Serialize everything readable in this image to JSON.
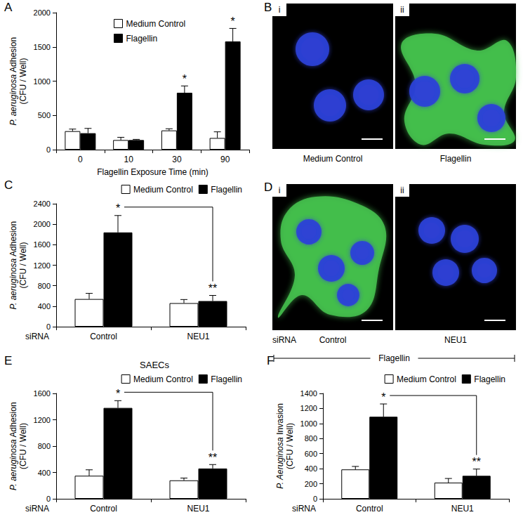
{
  "chart_data": [
    {
      "panel": "A",
      "type": "bar",
      "categories": [
        "0",
        "10",
        "30",
        "90"
      ],
      "xlabel": "Flagellin Exposure Time (min)",
      "ylabel": "P. aeruginosa Adhesion (CFU / Well)",
      "series": [
        {
          "name": "Medium Control",
          "color": "#ffffff",
          "values": [
            270,
            140,
            280,
            170
          ],
          "errors": [
            30,
            40,
            25,
            90
          ]
        },
        {
          "name": "Flagellin",
          "color": "#000000",
          "values": [
            240,
            140,
            830,
            1580
          ],
          "errors": [
            70,
            10,
            100,
            190
          ]
        }
      ],
      "ylim": [
        0,
        2000
      ],
      "yticks": [
        0,
        500,
        1000,
        1500,
        2000
      ],
      "grid": false,
      "legend": "upper center",
      "annotations": [
        {
          "text": "*",
          "series": "Flagellin",
          "category": "30"
        },
        {
          "text": "*",
          "series": "Flagellin",
          "category": "90"
        }
      ]
    },
    {
      "panel": "C",
      "type": "bar",
      "categories": [
        "Control",
        "NEU1"
      ],
      "row_label": "siRNA",
      "ylabel": "P. aeruginosa Adhesion (CFU / Well)",
      "series": [
        {
          "name": "Medium Control",
          "color": "#ffffff",
          "values": [
            540,
            460
          ],
          "errors": [
            110,
            70
          ]
        },
        {
          "name": "Flagellin",
          "color": "#000000",
          "values": [
            1840,
            500
          ],
          "errors": [
            330,
            110
          ]
        }
      ],
      "ylim": [
        0,
        2400
      ],
      "yticks": [
        0,
        400,
        800,
        1200,
        1600,
        2000,
        2400
      ],
      "grid": false,
      "legend": "upper right",
      "annotations": [
        {
          "text": "*",
          "series": "Flagellin",
          "category": "Control"
        },
        {
          "text": "**",
          "series": "Flagellin",
          "category": "NEU1"
        }
      ],
      "bracket": {
        "series": "Flagellin",
        "from": "Control",
        "to": "NEU1"
      }
    },
    {
      "panel": "E",
      "type": "bar",
      "title": "SAECs",
      "categories": [
        "Control",
        "NEU1"
      ],
      "row_label": "siRNA",
      "ylabel": "P. aeruginosa Adhesion (CFU / Well)",
      "series": [
        {
          "name": "Medium Control",
          "color": "#ffffff",
          "values": [
            350,
            280
          ],
          "errors": [
            90,
            35
          ]
        },
        {
          "name": "Flagellin",
          "color": "#000000",
          "values": [
            1380,
            460
          ],
          "errors": [
            110,
            60
          ]
        }
      ],
      "ylim": [
        0,
        1600
      ],
      "yticks": [
        0,
        400,
        800,
        1200,
        1600
      ],
      "grid": false,
      "legend": "upper right",
      "annotations": [
        {
          "text": "*",
          "series": "Flagellin",
          "category": "Control"
        },
        {
          "text": "**",
          "series": "Flagellin",
          "category": "NEU1"
        }
      ],
      "bracket": {
        "series": "Flagellin",
        "from": "Control",
        "to": "NEU1"
      }
    },
    {
      "panel": "F",
      "type": "bar",
      "categories": [
        "Control",
        "NEU1"
      ],
      "row_label": "siRNA",
      "ylabel": "P. Aeruginosa Invasion (CFU / Well)",
      "series": [
        {
          "name": "Medium Control",
          "color": "#ffffff",
          "values": [
            390,
            215
          ],
          "errors": [
            40,
            55
          ]
        },
        {
          "name": "Flagellin",
          "color": "#000000",
          "values": [
            1090,
            305
          ],
          "errors": [
            170,
            90
          ]
        }
      ],
      "ylim": [
        0,
        1400
      ],
      "yticks": [
        0,
        200,
        400,
        600,
        800,
        1000,
        1200,
        1400
      ],
      "grid": false,
      "legend": "upper right",
      "annotations": [
        {
          "text": "*",
          "series": "Flagellin",
          "category": "Control"
        },
        {
          "text": "**",
          "series": "Flagellin",
          "category": "NEU1"
        }
      ],
      "bracket": {
        "series": "Flagellin",
        "from": "Control",
        "to": "NEU1"
      }
    }
  ],
  "images": [
    {
      "panel": "B",
      "items": [
        {
          "label": "i",
          "caption": "Medium Control"
        },
        {
          "label": "ii",
          "caption": "Flagellin"
        }
      ]
    },
    {
      "panel": "D",
      "row_label": "siRNA",
      "group_label": "Flagellin",
      "items": [
        {
          "label": "i",
          "caption": "Control"
        },
        {
          "label": "ii",
          "caption": "NEU1"
        }
      ]
    }
  ]
}
